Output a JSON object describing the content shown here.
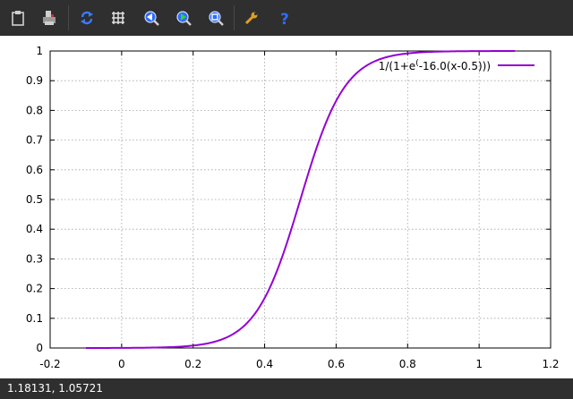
{
  "toolbar": {
    "buttons": [
      {
        "name": "copy-clipboard-button",
        "icon": "clipboard-icon"
      },
      {
        "name": "print-button",
        "icon": "printer-icon"
      },
      {
        "name": "replot-button",
        "icon": "replot-icon"
      },
      {
        "name": "grid-button",
        "icon": "grid-icon"
      },
      {
        "name": "zoom-previous-button",
        "icon": "zoom-previous-icon"
      },
      {
        "name": "zoom-next-button",
        "icon": "zoom-next-icon"
      },
      {
        "name": "autoscale-button",
        "icon": "autoscale-icon"
      },
      {
        "name": "options-button",
        "icon": "wrench-icon"
      },
      {
        "name": "help-button",
        "icon": "help-icon"
      }
    ]
  },
  "chart_data": {
    "type": "line",
    "function": "1/(1+exp(-16.0*(x-0.5)))",
    "x_range": [
      -0.1,
      1.1
    ],
    "xlim": [
      -0.2,
      1.2
    ],
    "ylim": [
      0,
      1
    ],
    "x_ticks": [
      "-0.2",
      "0",
      "0.2",
      "0.4",
      "0.6",
      "0.8",
      "1",
      "1.2"
    ],
    "y_ticks": [
      "0",
      "0.1",
      "0.2",
      "0.3",
      "0.4",
      "0.5",
      "0.6",
      "0.7",
      "0.8",
      "0.9",
      "1"
    ],
    "grid": true,
    "legend_position": "top-right",
    "series": [
      {
        "name": "1/(1+e^(-16.0(x-0.5)))",
        "color": "#9400d3",
        "x": [
          -0.1,
          0.0,
          0.1,
          0.2,
          0.25,
          0.3,
          0.35,
          0.4,
          0.45,
          0.5,
          0.55,
          0.6,
          0.65,
          0.7,
          0.75,
          0.8,
          0.9,
          1.0,
          1.1
        ],
        "y": [
          0.0001,
          0.0003,
          0.0017,
          0.0082,
          0.018,
          0.039,
          0.083,
          0.168,
          0.31,
          0.5,
          0.69,
          0.832,
          0.917,
          0.961,
          0.982,
          0.992,
          0.998,
          0.9997,
          0.9999
        ]
      }
    ],
    "legend_label_main": "1/(1+e",
    "legend_label_sup": "(",
    "legend_label_rest": "-16.0(x-0.5)))"
  },
  "status": {
    "text": "1.18131,  1.05721"
  }
}
